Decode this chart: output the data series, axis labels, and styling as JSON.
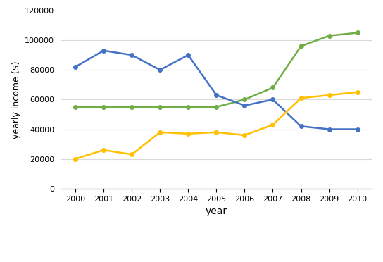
{
  "years": [
    2000,
    2001,
    2002,
    2003,
    2004,
    2005,
    2006,
    2007,
    2008,
    2009,
    2010
  ],
  "amandine_bakery": [
    55000,
    55000,
    55000,
    55000,
    55000,
    55000,
    60000,
    68000,
    96000,
    103000,
    105000
  ],
  "mari_bakeshop": [
    82000,
    93000,
    90000,
    80000,
    90000,
    63000,
    56000,
    60000,
    42000,
    40000,
    40000
  ],
  "bolo_cakery": [
    20000,
    26000,
    23000,
    38000,
    37000,
    38000,
    36000,
    43000,
    61000,
    63000,
    65000
  ],
  "amandine_color": "#70ad47",
  "mari_color": "#4472c4",
  "bolo_color": "#ffc000",
  "xlabel": "year",
  "ylabel": "yearly income ($)",
  "ylim": [
    0,
    120000
  ],
  "yticks": [
    0,
    20000,
    40000,
    60000,
    80000,
    100000,
    120000
  ],
  "marker": "o",
  "linewidth": 1.8,
  "markersize": 4,
  "background_color": "#ffffff",
  "grid_color": "#d9d9d9"
}
